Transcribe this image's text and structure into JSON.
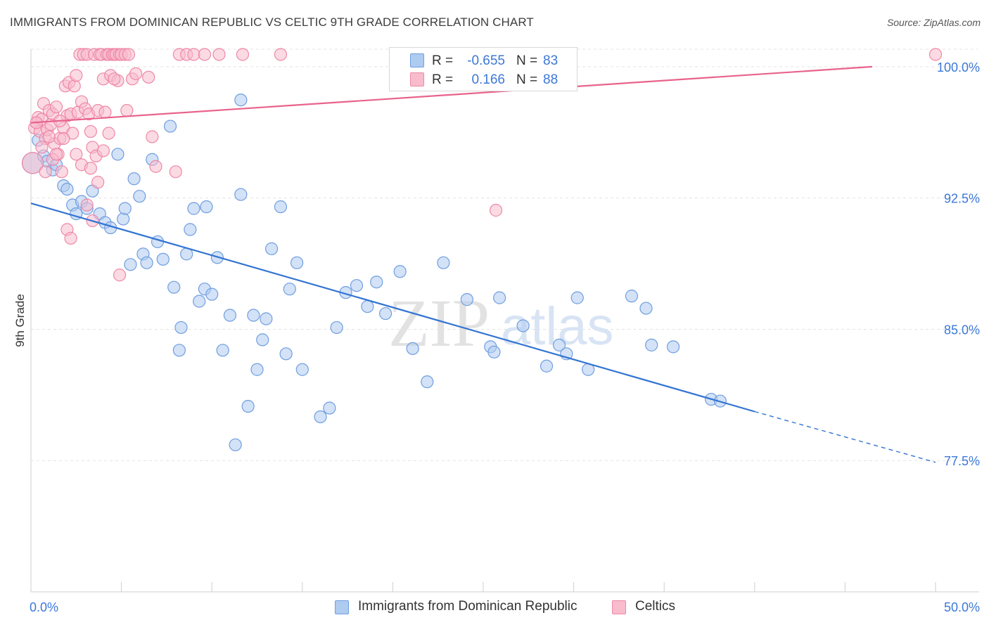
{
  "header": {
    "title": "IMMIGRANTS FROM DOMINICAN REPUBLIC VS CELTIC 9TH GRADE CORRELATION CHART",
    "source": "Source: ZipAtlas.com"
  },
  "watermark": {
    "zip": "ZIP",
    "atlas": "atlas"
  },
  "legend_top": {
    "rows": [
      {
        "r_label": "R =",
        "r_value": "-0.655",
        "n_label": "N =",
        "n_value": "83"
      },
      {
        "r_label": "R =",
        "r_value": "0.166",
        "n_label": "N =",
        "n_value": "88"
      }
    ]
  },
  "legend_bottom": {
    "items": [
      {
        "label": "Immigrants from Dominican Republic"
      },
      {
        "label": "Celtics"
      }
    ]
  },
  "colors": {
    "blue_fill": "#aecbf0",
    "blue_stroke": "#6f9ee0",
    "blue_line": "#3374d2",
    "pink_fill": "#f8bccd",
    "pink_stroke": "#ee88a6",
    "pink_line": "#e8638c",
    "axis_label": "#3c78d8",
    "grid": "#e3e3e3"
  },
  "chart_data": {
    "type": "scatter",
    "title": "IMMIGRANTS FROM DOMINICAN REPUBLIC VS CELTIC 9TH GRADE CORRELATION CHART",
    "xlabel": "",
    "ylabel": "9th Grade",
    "xlim": [
      0,
      50
    ],
    "ylim": [
      70.0,
      101.0
    ],
    "x_tick_labels": [
      "0.0%",
      "50.0%"
    ],
    "y_ticks": [
      77.5,
      85.0,
      92.5,
      100.0
    ],
    "y_tick_labels": [
      "77.5%",
      "85.0%",
      "92.5%",
      "100.0%"
    ],
    "grid": true,
    "legend_position": "top-center",
    "series": [
      {
        "name": "Immigrants from Dominican Republic",
        "r": -0.655,
        "n": 83,
        "trend": {
          "x0": 0,
          "y0": 92.2,
          "x1": 40,
          "y1": 80.3,
          "dash_to_x": 50,
          "dash_to_y": 77.4
        },
        "points": [
          [
            0.1,
            94.5
          ],
          [
            0.4,
            95.8
          ],
          [
            0.7,
            94.9
          ],
          [
            0.9,
            94.6
          ],
          [
            1.2,
            94.1
          ],
          [
            1.4,
            94.4
          ],
          [
            1.8,
            93.2
          ],
          [
            2.0,
            93.0
          ],
          [
            2.3,
            92.1
          ],
          [
            2.5,
            91.6
          ],
          [
            2.8,
            92.3
          ],
          [
            3.1,
            91.9
          ],
          [
            3.4,
            92.9
          ],
          [
            3.8,
            91.6
          ],
          [
            4.1,
            91.1
          ],
          [
            4.4,
            90.8
          ],
          [
            4.8,
            95.0
          ],
          [
            5.1,
            91.3
          ],
          [
            5.2,
            91.9
          ],
          [
            5.5,
            88.7
          ],
          [
            5.7,
            93.6
          ],
          [
            6.0,
            92.6
          ],
          [
            6.2,
            89.3
          ],
          [
            6.4,
            88.8
          ],
          [
            6.7,
            94.7
          ],
          [
            7.0,
            90.0
          ],
          [
            7.3,
            89.0
          ],
          [
            7.7,
            96.6
          ],
          [
            7.9,
            87.4
          ],
          [
            8.2,
            83.8
          ],
          [
            8.3,
            85.1
          ],
          [
            8.6,
            89.3
          ],
          [
            8.8,
            90.7
          ],
          [
            9.0,
            91.9
          ],
          [
            9.3,
            86.6
          ],
          [
            9.6,
            87.3
          ],
          [
            9.7,
            92.0
          ],
          [
            10.0,
            87.0
          ],
          [
            10.3,
            89.1
          ],
          [
            10.6,
            83.8
          ],
          [
            11.0,
            85.8
          ],
          [
            11.3,
            78.4
          ],
          [
            11.6,
            98.1
          ],
          [
            11.6,
            92.7
          ],
          [
            12.0,
            80.6
          ],
          [
            12.3,
            85.8
          ],
          [
            12.5,
            82.7
          ],
          [
            12.8,
            84.4
          ],
          [
            13.0,
            85.6
          ],
          [
            13.3,
            89.6
          ],
          [
            13.8,
            92.0
          ],
          [
            14.1,
            83.6
          ],
          [
            14.3,
            87.3
          ],
          [
            14.7,
            88.8
          ],
          [
            15.0,
            82.7
          ],
          [
            16.0,
            80.0
          ],
          [
            16.5,
            80.5
          ],
          [
            16.9,
            85.1
          ],
          [
            17.4,
            87.1
          ],
          [
            18.0,
            87.5
          ],
          [
            18.6,
            86.3
          ],
          [
            19.1,
            87.7
          ],
          [
            19.6,
            85.9
          ],
          [
            20.4,
            88.3
          ],
          [
            21.1,
            83.9
          ],
          [
            21.9,
            82.0
          ],
          [
            22.8,
            88.8
          ],
          [
            24.1,
            86.7
          ],
          [
            25.4,
            84.0
          ],
          [
            25.6,
            83.7
          ],
          [
            25.9,
            86.8
          ],
          [
            27.2,
            85.2
          ],
          [
            28.5,
            82.9
          ],
          [
            29.2,
            84.1
          ],
          [
            29.6,
            83.6
          ],
          [
            30.2,
            86.8
          ],
          [
            30.8,
            82.7
          ],
          [
            33.2,
            86.9
          ],
          [
            34.0,
            86.2
          ],
          [
            34.3,
            84.1
          ],
          [
            35.5,
            84.0
          ],
          [
            37.6,
            81.0
          ],
          [
            38.1,
            80.9
          ]
        ]
      },
      {
        "name": "Celtics",
        "r": 0.166,
        "n": 88,
        "trend": {
          "x0": 0,
          "y0": 96.8,
          "x1": 46.5,
          "y1": 100.0
        },
        "points": [
          [
            0.1,
            94.5
          ],
          [
            0.2,
            96.5
          ],
          [
            0.3,
            96.8
          ],
          [
            0.4,
            97.1
          ],
          [
            0.5,
            96.3
          ],
          [
            0.6,
            97.0
          ],
          [
            0.7,
            97.9
          ],
          [
            0.8,
            95.9
          ],
          [
            0.9,
            96.4
          ],
          [
            1.0,
            97.5
          ],
          [
            1.1,
            96.7
          ],
          [
            1.2,
            97.3
          ],
          [
            1.3,
            95.6
          ],
          [
            1.4,
            97.7
          ],
          [
            1.5,
            95.0
          ],
          [
            1.6,
            95.9
          ],
          [
            1.7,
            94.0
          ],
          [
            1.8,
            96.5
          ],
          [
            1.9,
            98.9
          ],
          [
            2.0,
            97.2
          ],
          [
            2.1,
            99.1
          ],
          [
            2.2,
            97.3
          ],
          [
            2.3,
            96.2
          ],
          [
            2.4,
            98.9
          ],
          [
            2.5,
            99.5
          ],
          [
            2.6,
            97.4
          ],
          [
            2.7,
            100.7
          ],
          [
            2.8,
            98.0
          ],
          [
            2.9,
            100.7
          ],
          [
            3.0,
            97.6
          ],
          [
            3.1,
            100.7
          ],
          [
            3.2,
            97.3
          ],
          [
            3.3,
            96.3
          ],
          [
            3.4,
            95.4
          ],
          [
            3.5,
            100.7
          ],
          [
            3.6,
            94.9
          ],
          [
            3.7,
            97.5
          ],
          [
            3.8,
            100.7
          ],
          [
            3.9,
            100.7
          ],
          [
            4.0,
            99.3
          ],
          [
            4.1,
            97.4
          ],
          [
            4.2,
            100.7
          ],
          [
            4.3,
            100.7
          ],
          [
            4.4,
            99.5
          ],
          [
            4.5,
            100.7
          ],
          [
            4.6,
            100.7
          ],
          [
            4.7,
            100.7
          ],
          [
            4.8,
            99.2
          ],
          [
            4.9,
            100.7
          ],
          [
            5.0,
            100.7
          ],
          [
            5.2,
            100.7
          ],
          [
            5.4,
            100.7
          ],
          [
            5.6,
            99.3
          ],
          [
            6.5,
            99.4
          ],
          [
            6.7,
            96.0
          ],
          [
            8.2,
            100.7
          ],
          [
            8.6,
            100.7
          ],
          [
            9.0,
            100.7
          ],
          [
            9.6,
            100.7
          ],
          [
            10.4,
            100.7
          ],
          [
            11.7,
            100.7
          ],
          [
            13.8,
            100.7
          ],
          [
            0.3,
            96.8
          ],
          [
            0.6,
            95.4
          ],
          [
            0.8,
            94.0
          ],
          [
            1.0,
            96.0
          ],
          [
            1.2,
            94.7
          ],
          [
            1.4,
            95.0
          ],
          [
            1.6,
            96.9
          ],
          [
            1.8,
            95.9
          ],
          [
            2.0,
            90.7
          ],
          [
            2.2,
            90.2
          ],
          [
            2.5,
            95.0
          ],
          [
            2.8,
            94.4
          ],
          [
            3.1,
            92.1
          ],
          [
            3.3,
            94.2
          ],
          [
            3.4,
            91.2
          ],
          [
            3.7,
            93.4
          ],
          [
            4.0,
            95.2
          ],
          [
            4.3,
            96.2
          ],
          [
            4.6,
            99.3
          ],
          [
            4.9,
            88.1
          ],
          [
            5.3,
            97.5
          ],
          [
            6.9,
            94.3
          ],
          [
            8.0,
            94.0
          ],
          [
            25.7,
            91.8
          ],
          [
            5.8,
            99.6
          ],
          [
            50.0,
            100.7
          ]
        ]
      }
    ]
  }
}
